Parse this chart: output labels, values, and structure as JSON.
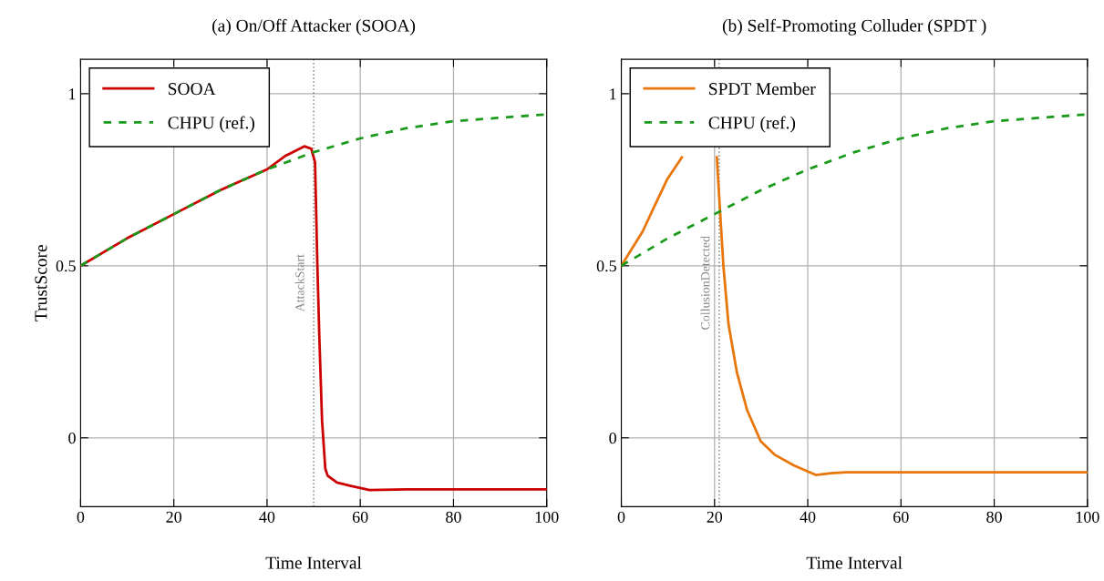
{
  "chart_data": [
    {
      "type": "line",
      "title": "(a) On/Off Attacker (SOOA)",
      "xlabel": "Time Interval",
      "ylabel": "TrustScore",
      "xlim": [
        0,
        100
      ],
      "ylim": [
        -0.2,
        1.1
      ],
      "xticks": [
        0,
        20,
        40,
        60,
        80,
        100
      ],
      "yticks": [
        0,
        0.5,
        1
      ],
      "grid": true,
      "legend": "top left",
      "series": [
        {
          "name": "SOOA",
          "color": "#cc0000",
          "line_style": "solid",
          "x": [
            0,
            10,
            20,
            30,
            40,
            44,
            48,
            49.5,
            50.3,
            50.8,
            51.2,
            51.8,
            52.5,
            53,
            55,
            58,
            62,
            70,
            80,
            100
          ],
          "values": [
            0.5,
            0.58,
            0.65,
            0.72,
            0.78,
            0.82,
            0.847,
            0.84,
            0.8,
            0.5,
            0.3,
            0.05,
            -0.09,
            -0.11,
            -0.13,
            -0.14,
            -0.152,
            -0.15,
            -0.15,
            -0.15
          ]
        },
        {
          "name": "CHPU (ref.)",
          "color": "#1a9a1a",
          "line_style": "dashed",
          "x": [
            0,
            10,
            20,
            30,
            40,
            50,
            60,
            70,
            80,
            90,
            100
          ],
          "values": [
            0.5,
            0.58,
            0.65,
            0.72,
            0.78,
            0.83,
            0.87,
            0.9,
            0.92,
            0.93,
            0.94
          ]
        }
      ],
      "ref_lines": [
        {
          "axis": "x",
          "value": 50,
          "label": "AttackStart",
          "color": "#888888",
          "line_style": "dotted"
        }
      ]
    },
    {
      "type": "line",
      "title": "(b) Self-Promoting Colluder (SPDT )",
      "xlabel": "Time Interval",
      "xlim": [
        0,
        100
      ],
      "ylim": [
        -0.2,
        1.1
      ],
      "xticks": [
        0,
        20,
        40,
        60,
        80,
        100
      ],
      "yticks": [
        0,
        0.5,
        1
      ],
      "grid": true,
      "legend": "top left",
      "series": [
        {
          "name": "SPDT Member",
          "color": "#e8760a",
          "line_style": "solid",
          "x": [
            0,
            4.6,
            7,
            9.8,
            13,
            16,
            20.5,
            21,
            21.9,
            23,
            24.8,
            27,
            29.9,
            33,
            37,
            41.7,
            45,
            48.2,
            60,
            80,
            100
          ],
          "values": [
            0.5,
            0.6,
            0.67,
            0.75,
            0.815,
            null,
            0.815,
            0.7,
            0.5,
            0.33,
            0.19,
            0.08,
            -0.01,
            -0.05,
            -0.08,
            -0.108,
            -0.103,
            -0.1,
            -0.1,
            -0.1,
            -0.1
          ]
        },
        {
          "name": "CHPU (ref.)",
          "color": "#1a9a1a",
          "line_style": "dashed",
          "x": [
            0,
            10,
            20,
            30,
            40,
            50,
            60,
            70,
            80,
            90,
            100
          ],
          "values": [
            0.5,
            0.58,
            0.65,
            0.72,
            0.78,
            0.83,
            0.87,
            0.9,
            0.92,
            0.93,
            0.94
          ]
        }
      ],
      "ref_lines": [
        {
          "axis": "x",
          "value": 21,
          "label": "CollusionDetected",
          "color": "#888888",
          "line_style": "dotted"
        }
      ]
    }
  ]
}
